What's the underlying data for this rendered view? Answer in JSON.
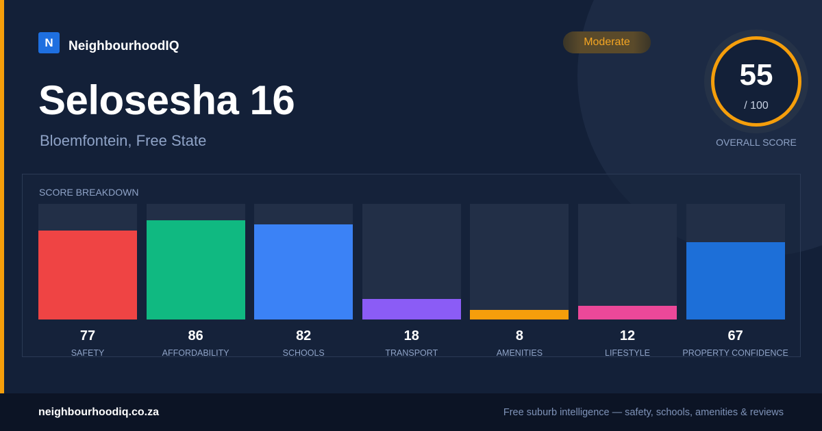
{
  "brand": {
    "logo_letter": "N",
    "name": "NeighbourhoodIQ"
  },
  "suburb": {
    "name": "Selosesha 16",
    "location": "Bloemfontein, Free State"
  },
  "rating_badge": "Moderate",
  "overall": {
    "score": "55",
    "max": "/ 100",
    "label": "OVERALL SCORE"
  },
  "breakdown": {
    "title": "SCORE BREAKDOWN",
    "items": [
      {
        "label": "SAFETY",
        "value": "77",
        "color": "#ef4444"
      },
      {
        "label": "AFFORDABILITY",
        "value": "86",
        "color": "#10b981"
      },
      {
        "label": "SCHOOLS",
        "value": "82",
        "color": "#3b82f6"
      },
      {
        "label": "TRANSPORT",
        "value": "18",
        "color": "#8b5cf6"
      },
      {
        "label": "AMENITIES",
        "value": "8",
        "color": "#f59e0b"
      },
      {
        "label": "LIFESTYLE",
        "value": "12",
        "color": "#ec4899"
      },
      {
        "label": "PROPERTY CONFIDENCE",
        "value": "67",
        "color": "#1d6fd8"
      }
    ]
  },
  "colors": {
    "accent": "#f59e0b",
    "background": "#132038",
    "footer_bg": "#0c1425"
  },
  "footer": {
    "domain": "neighbourhoodiq.co.za",
    "tagline": "Free suburb intelligence — safety, schools, amenities & reviews"
  }
}
